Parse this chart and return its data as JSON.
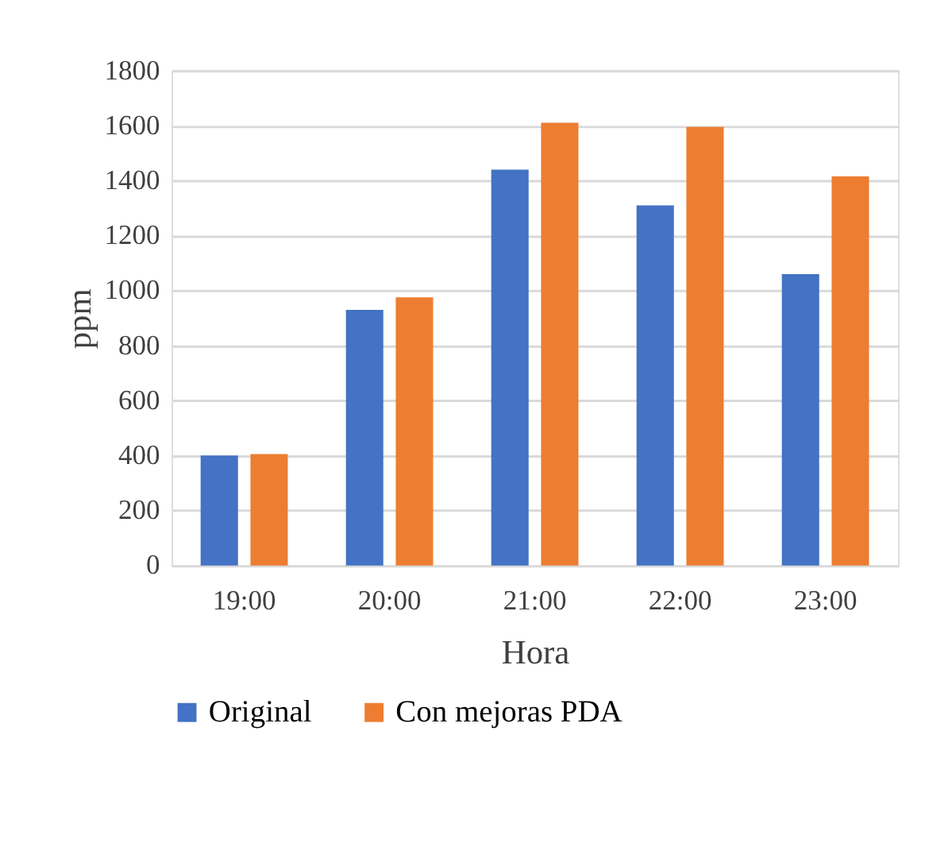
{
  "chart_data": {
    "type": "bar",
    "xlabel": "Hora",
    "ylabel": "ppm",
    "categories": [
      "19:00",
      "20:00",
      "21:00",
      "22:00",
      "23:00"
    ],
    "series": [
      {
        "name": "Original",
        "color": "#4472c4",
        "values": [
          400,
          930,
          1440,
          1310,
          1060
        ]
      },
      {
        "name": "Con mejoras PDA",
        "color": "#ed7d31",
        "values": [
          405,
          975,
          1610,
          1595,
          1415
        ]
      }
    ],
    "ylim": [
      0,
      1800
    ],
    "yticks": [
      0,
      200,
      400,
      600,
      800,
      1000,
      1200,
      1400,
      1600,
      1800
    ],
    "grid": "y",
    "legend": "bottom"
  }
}
